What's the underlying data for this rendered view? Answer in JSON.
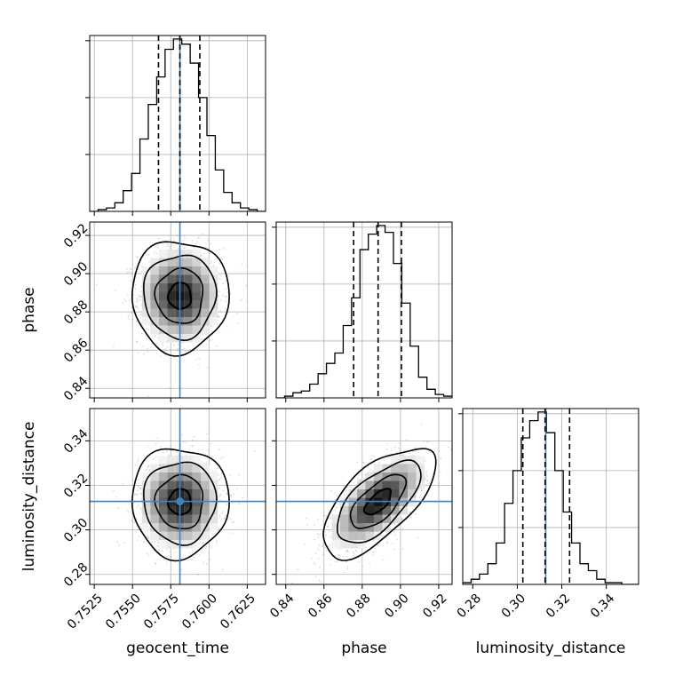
{
  "chart_data": {
    "type": "corner",
    "parameters": [
      "geocent_time",
      "phase",
      "luminosity_distance"
    ],
    "axis_labels": {
      "x": [
        "geocent_time",
        "phase",
        "luminosity_distance"
      ],
      "y": [
        "phase",
        "luminosity_distance"
      ]
    },
    "ranges": {
      "geocent_time": [
        0.7522,
        0.7637
      ],
      "phase": [
        0.835,
        0.927
      ],
      "luminosity_distance": [
        0.2755,
        0.3545
      ]
    },
    "ticks": {
      "geocent_time": [
        "0.7525",
        "0.7550",
        "0.7575",
        "0.7600",
        "0.7625"
      ],
      "phase": [
        "0.84",
        "0.86",
        "0.88",
        "0.90",
        "0.92"
      ],
      "luminosity_distance": [
        "0.28",
        "0.30",
        "0.32",
        "0.34"
      ]
    },
    "truths": {
      "geocent_time": 0.7581,
      "phase": null,
      "luminosity_distance": 0.3128
    },
    "truth_color": "#4682b4",
    "quantiles": {
      "geocent_time": [
        0.7567,
        0.7581,
        0.7594
      ],
      "phase": [
        0.8755,
        0.8883,
        0.9005
      ],
      "luminosity_distance": [
        0.3025,
        0.3125,
        0.3235
      ]
    },
    "histograms": {
      "geocent_time": [
        0,
        1,
        2,
        5,
        12,
        22,
        42,
        62,
        78,
        94,
        100,
        97,
        86,
        66,
        44,
        24,
        11,
        5,
        2,
        1,
        0
      ],
      "phase": [
        0,
        1,
        3,
        4,
        8,
        14,
        20,
        26,
        42,
        58,
        86,
        95,
        100,
        96,
        78,
        55,
        30,
        12,
        5,
        2,
        1
      ],
      "luminosity_distance": [
        1,
        3,
        6,
        12,
        24,
        47,
        66,
        85,
        95,
        100,
        88,
        66,
        42,
        24,
        12,
        8,
        3,
        1,
        1,
        0,
        0
      ]
    },
    "correlations": [
      {
        "x": "geocent_time",
        "y": "phase",
        "rho": 0.0
      },
      {
        "x": "geocent_time",
        "y": "luminosity_distance",
        "rho": 0.0
      },
      {
        "x": "phase",
        "y": "luminosity_distance",
        "rho": 0.65
      }
    ],
    "grid": true
  }
}
